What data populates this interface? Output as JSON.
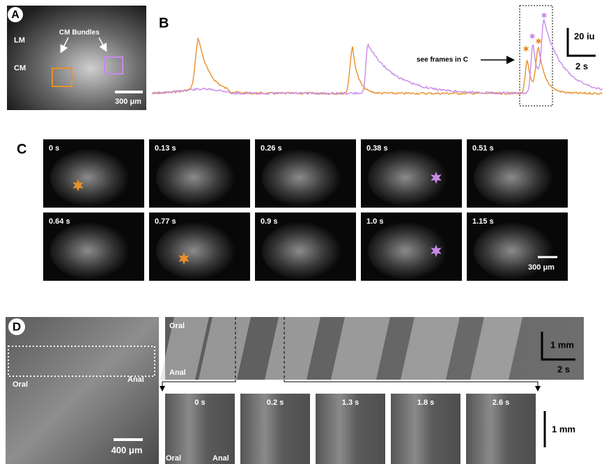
{
  "panel_a": {
    "label": "A",
    "layers": [
      "LM",
      "CM"
    ],
    "annotation": "CM Bundles",
    "scale_bar": "300 μm"
  },
  "panel_b": {
    "label": "B",
    "annotation": "see frames in C",
    "scale_y": "20 iu",
    "scale_x": "2 s"
  },
  "panel_c": {
    "label": "C",
    "frames": [
      "0 s",
      "0.13 s",
      "0.26 s",
      "0.38 s",
      "0.51 s",
      "0.64 s",
      "0.77 s",
      "0.9 s",
      "1.0 s",
      "1.15 s"
    ],
    "scale_bar": "300 μm"
  },
  "panel_d": {
    "label": "D",
    "image": {
      "oral": "Oral",
      "anal": "Anal",
      "scale_bar": "400 μm"
    },
    "kymograph": {
      "oral": "Oral",
      "anal": "Anal",
      "scale_y": "1 mm",
      "scale_x": "2 s"
    },
    "frames": [
      "0 s",
      "0.2 s",
      "1.3 s",
      "1.8 s",
      "2.6 s"
    ],
    "frame_oral": "Oral",
    "frame_anal": "Anal",
    "frame_scale": "1 mm"
  }
}
